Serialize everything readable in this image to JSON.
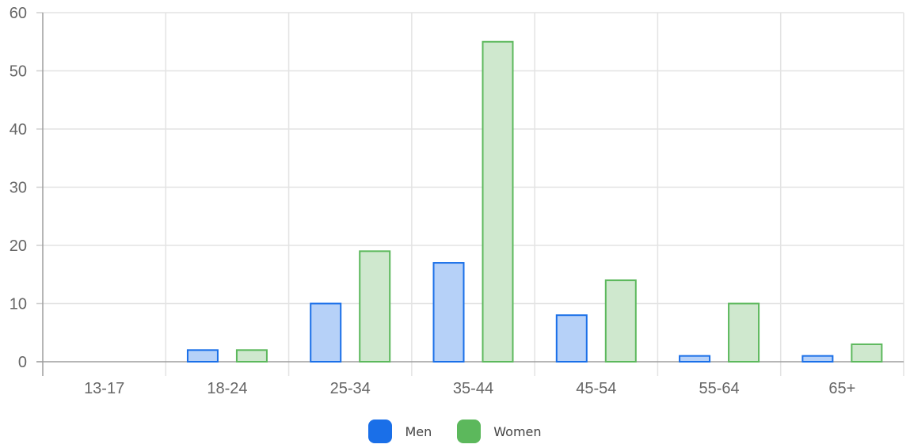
{
  "chart_data": {
    "type": "bar",
    "categories": [
      "13-17",
      "18-24",
      "25-34",
      "35-44",
      "45-54",
      "55-64",
      "65+"
    ],
    "series": [
      {
        "name": "Men",
        "values": [
          0,
          2,
          10,
          17,
          8,
          1,
          1
        ],
        "color": "#1a6fe8",
        "fill": "#b6d1f8"
      },
      {
        "name": "Women",
        "values": [
          0,
          2,
          19,
          55,
          14,
          10,
          3
        ],
        "color": "#5cb85c",
        "fill": "#cfe8ce"
      }
    ],
    "y_ticks": [
      "0",
      "10",
      "20",
      "30",
      "40",
      "50",
      "60"
    ],
    "ylim": [
      0,
      60
    ],
    "grid": true,
    "legend_position": "bottom"
  },
  "legend": {
    "men_label": "Men",
    "women_label": "Women",
    "men_color": "#1a6fe8",
    "women_color": "#5cb85c"
  }
}
